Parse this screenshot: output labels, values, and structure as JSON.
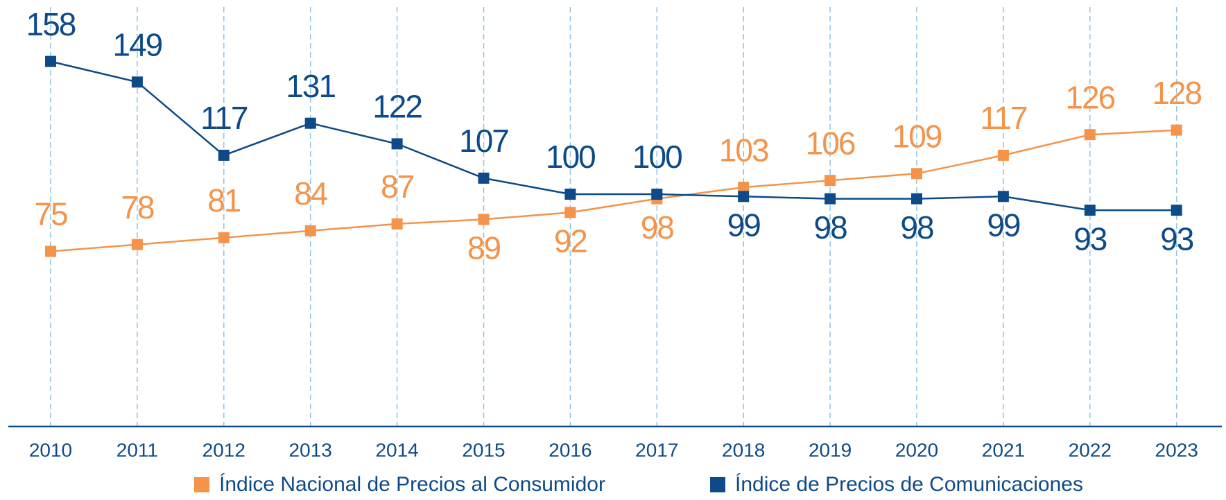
{
  "chart_data": {
    "type": "line",
    "categories": [
      "2010",
      "2011",
      "2012",
      "2013",
      "2014",
      "2015",
      "2016",
      "2017",
      "2018",
      "2019",
      "2020",
      "2021",
      "2022",
      "2023"
    ],
    "series": [
      {
        "name": "Índice Nacional de Precios al Consumidor",
        "color": "#f4934a",
        "values": [
          75,
          78,
          81,
          84,
          87,
          89,
          92,
          98,
          103,
          106,
          109,
          117,
          126,
          128
        ]
      },
      {
        "name": "Índice de Precios de Comunicaciones",
        "color": "#0d4a87",
        "values": [
          158,
          149,
          117,
          131,
          122,
          107,
          100,
          100,
          99,
          98,
          98,
          99,
          93,
          93
        ]
      }
    ],
    "ylim": [
      0,
      160
    ],
    "grid": true,
    "legend": "bottom"
  }
}
